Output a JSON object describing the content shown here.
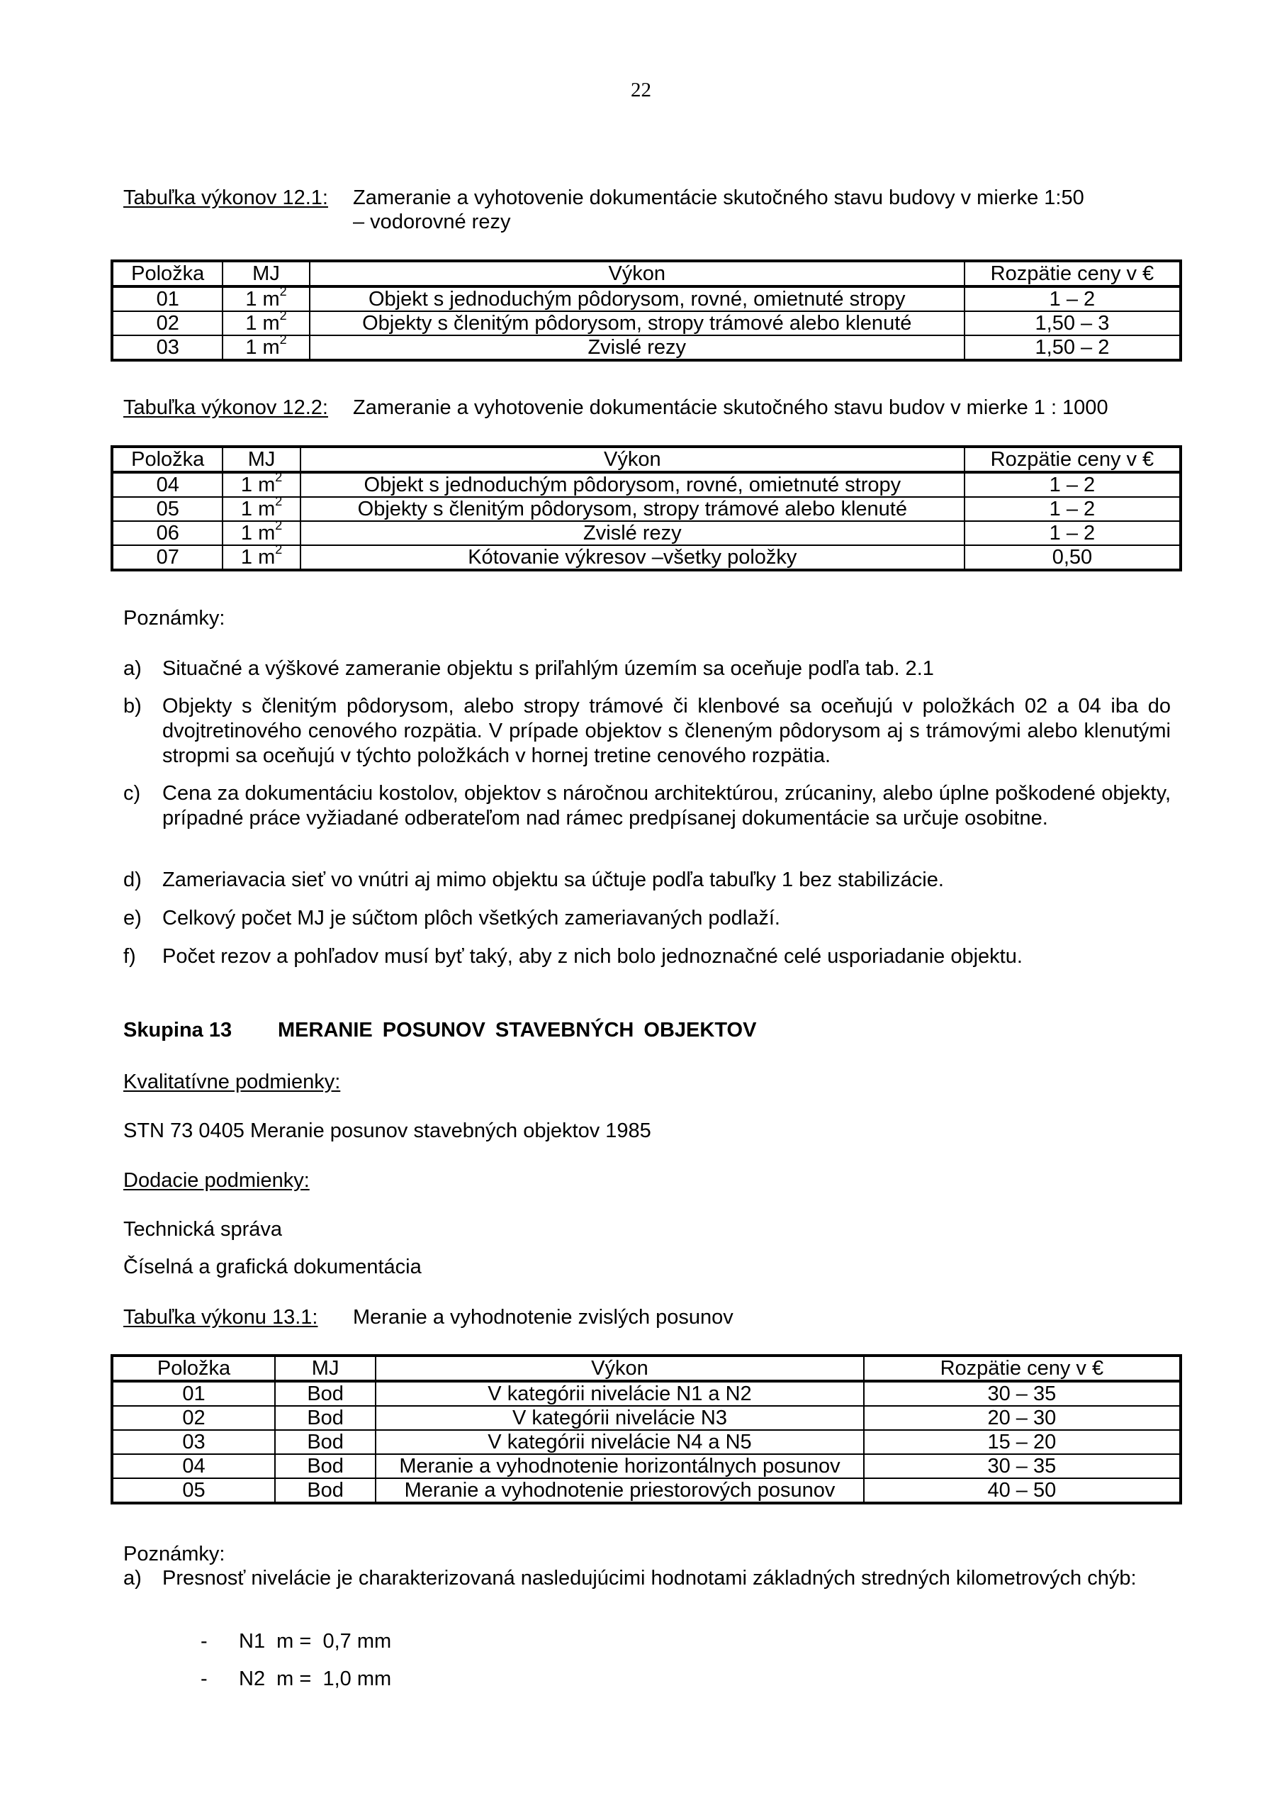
{
  "page_number": "22",
  "table_12_1": {
    "caption_label": "Tabuľka výkonov 12.1:",
    "caption_text": "Zameranie a vyhotovenie dokumentácie skutočného stavu budovy v mierke 1:50",
    "caption_text_2": "– vodorovné rezy",
    "headers": [
      "Položka",
      "MJ",
      "Výkon",
      "Rozpätie ceny v €"
    ],
    "rows": [
      [
        "01",
        "1 m",
        "Objekt s jednoduchým pôdorysom, rovné, omietnuté stropy",
        "1 – 2"
      ],
      [
        "02",
        "1 m",
        "Objekty s členitým pôdorysom, stropy trámové alebo klenuté",
        "1,50 – 3"
      ],
      [
        "03",
        "1 m",
        "Zvislé rezy",
        "1,50 – 2"
      ]
    ]
  },
  "table_12_2": {
    "caption_label": "Tabuľka výkonov 12.2:",
    "caption_text": "Zameranie a vyhotovenie dokumentácie skutočného stavu budov v mierke 1 : 1000",
    "headers": [
      "Položka",
      "MJ",
      "Výkon",
      "Rozpätie ceny v €"
    ],
    "rows": [
      [
        "04",
        "1 m",
        "Objekt s jednoduchým pôdorysom, rovné, omietnuté stropy",
        "1 – 2"
      ],
      [
        "05",
        "1 m",
        "Objekty s členitým pôdorysom, stropy trámové alebo klenuté",
        "1 – 2"
      ],
      [
        "06",
        "1 m",
        "Zvislé rezy",
        "1 – 2"
      ],
      [
        "07",
        "1 m",
        "Kótovanie výkresov –všetky položky",
        "0,50"
      ]
    ]
  },
  "unit_superscript": "2",
  "notes_1": {
    "heading": "Poznámky:",
    "items": [
      {
        "label": "a)",
        "text": "Situačné a výškové zameranie objektu s priľahlým územím sa oceňuje podľa tab. 2.1"
      },
      {
        "label": "b)",
        "text": "Objekty s členitým pôdorysom, alebo stropy trámové či klenbové sa oceňujú v položkách 02 a 04 iba do dvojtretinového cenového rozpätia. V prípade objektov s členeným pôdorysom aj s trámovými alebo klenutými stropmi sa oceňujú v týchto položkách v hornej tretine cenového rozpätia."
      },
      {
        "label": "c)",
        "text": "Cena za dokumentáciu kostolov, objektov s náročnou architektúrou, zrúcaniny, alebo úplne poškodené objekty, prípadné práce vyžiadané odberateľom nad rámec predpísanej dokumentácie sa určuje osobitne."
      },
      {
        "label": "d)",
        "text": "Zameriavacia sieť vo vnútri aj mimo objektu sa účtuje podľa tabuľky 1 bez stabilizácie."
      },
      {
        "label": "e)",
        "text": "Celkový počet MJ je súčtom plôch všetkých zameriavaných podlaží."
      },
      {
        "label": "f)",
        "text": "Počet rezov a pohľadov musí byť taký, aby z nich bolo jednoznačné celé usporiadanie objektu."
      }
    ]
  },
  "group_13": {
    "label": "Skupina 13",
    "title": "MERANIE POSUNOV STAVEBNÝCH OBJEKTOV",
    "quality_heading": "Kvalitatívne podmienky:",
    "quality_text": "STN 73 0405 Meranie posunov stavebných objektov 1985",
    "delivery_heading": "Dodacie podmienky:",
    "delivery_items": [
      "Technická správa",
      "Číselná a grafická dokumentácia"
    ]
  },
  "table_13_1": {
    "caption_label": "Tabuľka výkonu 13.1:",
    "caption_text": "Meranie a vyhodnotenie zvislých posunov",
    "headers": [
      "Položka",
      "MJ",
      "Výkon",
      "Rozpätie ceny v €"
    ],
    "rows": [
      [
        "01",
        "Bod",
        "V kategórii nivelácie N1 a N2",
        "30 – 35"
      ],
      [
        "02",
        "Bod",
        "V kategórii nivelácie N3",
        "20 – 30"
      ],
      [
        "03",
        "Bod",
        "V kategórii nivelácie N4 a N5",
        "15 – 20"
      ],
      [
        "04",
        "Bod",
        "Meranie a vyhodnotenie horizontálnych posunov",
        "30 – 35"
      ],
      [
        "05",
        "Bod",
        "Meranie a vyhodnotenie priestorových posunov",
        "40 – 50"
      ]
    ]
  },
  "notes_2": {
    "heading": "Poznámky:",
    "item_a_label": "a)",
    "item_a_text": "Presnosť nivelácie je charakterizovaná nasledujúcimi hodnotami základných stredných kilometrových chýb:",
    "list": [
      {
        "dash": "-",
        "text": "N1  m =  0,7 mm"
      },
      {
        "dash": "-",
        "text": "N2  m =  1,0 mm"
      }
    ]
  }
}
